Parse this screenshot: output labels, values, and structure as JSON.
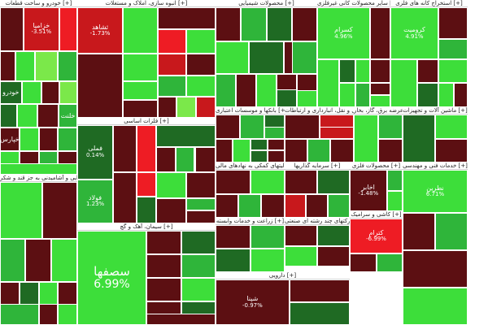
{
  "chart_data": {
    "type": "treemap",
    "colors": {
      "dark_red": "#5c0f12",
      "red": "#c8181c",
      "bright_red": "#ee1c24",
      "dark_green": "#1f6a23",
      "green": "#2fb53a",
      "bright_green": "#3dde3a",
      "lime": "#7be84a"
    },
    "sectors": [
      {
        "name": "خودرو و ساخت قطعات [+]",
        "cells": [
          {
            "c": "dark_red"
          },
          {
            "label": "خزامیا",
            "value": "-3.51%",
            "c": "red"
          },
          {
            "c": "bright_red"
          },
          {
            "c": "dark_red"
          },
          {
            "c": "bright_green"
          },
          {
            "c": "lime"
          },
          {
            "c": "green"
          },
          {
            "label": "خودرو",
            "c": "dark_green"
          },
          {
            "c": "bright_green"
          },
          {
            "c": "dark_red"
          },
          {
            "c": "lime"
          },
          {
            "c": "dark_green"
          },
          {
            "c": "bright_green"
          },
          {
            "c": "dark_red"
          },
          {
            "label": "خلنت",
            "c": "green"
          },
          {
            "label": "خپارس",
            "c": "dark_red"
          },
          {
            "c": "bright_green"
          },
          {
            "c": "dark_red"
          },
          {
            "c": "green"
          },
          {
            "c": "bright_green"
          },
          {
            "c": "dark_red"
          },
          {
            "c": "green"
          },
          {
            "c": "dark_red"
          },
          {
            "c": "bright_green"
          }
        ]
      },
      {
        "name": "انبوه سازی، املاک و مستغلات [+]",
        "cells": [
          {
            "label": "ثشاهد",
            "value": "-1.73%",
            "c": "red"
          },
          {
            "c": "bright_green"
          },
          {
            "c": "dark_red"
          },
          {
            "c": "bright_red"
          },
          {
            "c": "bright_green"
          },
          {
            "c": "dark_red"
          },
          {
            "c": "bright_green"
          },
          {
            "c": "red"
          },
          {
            "c": "dark_red"
          },
          {
            "c": "bright_green"
          },
          {
            "c": "dark_red"
          },
          {
            "c": "green"
          },
          {
            "c": "bright_green"
          },
          {
            "c": "dark_red"
          },
          {
            "c": "lime"
          },
          {
            "c": "red"
          }
        ]
      },
      {
        "name": "محصولات شیمیایی [+]",
        "cells": [
          {
            "c": "dark_red"
          },
          {
            "c": "green"
          },
          {
            "c": "dark_green"
          },
          {
            "c": "dark_red"
          },
          {
            "c": "bright_green"
          },
          {
            "c": "dark_green"
          },
          {
            "c": "dark_red"
          },
          {
            "c": "green"
          },
          {
            "c": "dark_red"
          },
          {
            "c": "bright_green"
          },
          {
            "c": "dark_green"
          },
          {
            "c": "dark_red"
          },
          {
            "c": "green"
          },
          {
            "c": "dark_red"
          },
          {
            "c": "bright_green"
          }
        ]
      },
      {
        "name": "سایر محصولات کانی غیرفلزی [+]",
        "cells": [
          {
            "label": "کسرام",
            "value": "4.96%",
            "c": "bright_green"
          },
          {
            "c": "dark_red"
          },
          {
            "c": "bright_green"
          },
          {
            "c": "dark_green"
          },
          {
            "c": "bright_green"
          },
          {
            "c": "dark_red"
          },
          {
            "c": "bright_green"
          },
          {
            "c": "green"
          },
          {
            "c": "dark_red"
          },
          {
            "c": "bright_green"
          }
        ]
      },
      {
        "name": "استخراج کانه های فلزی [+]",
        "cells": [
          {
            "label": "کروميت",
            "value": "4.91%",
            "c": "bright_green"
          },
          {
            "c": "dark_red"
          },
          {
            "c": "green"
          },
          {
            "c": "bright_green"
          },
          {
            "c": "dark_red"
          },
          {
            "c": "bright_green"
          },
          {
            "c": "dark_green"
          },
          {
            "c": "bright_green"
          },
          {
            "c": "dark_red"
          }
        ]
      },
      {
        "name": "فلزات اساسی [+]",
        "cells": [
          {
            "label": "فملی",
            "value": "0.14%",
            "c": "dark_green"
          },
          {
            "c": "dark_red"
          },
          {
            "c": "bright_red"
          },
          {
            "label": "فولاد",
            "value": "1.23%",
            "c": "green"
          },
          {
            "c": "dark_red"
          },
          {
            "c": "dark_green"
          },
          {
            "c": "bright_red"
          },
          {
            "c": "dark_red"
          },
          {
            "c": "green"
          },
          {
            "c": "dark_red"
          },
          {
            "c": "bright_green"
          },
          {
            "c": "dark_red"
          },
          {
            "c": "dark_green"
          },
          {
            "c": "dark_red"
          },
          {
            "c": "green"
          },
          {
            "c": "dark_red"
          }
        ]
      },
      {
        "name": "سیمان، آهک و گچ [+]",
        "cells": [
          {
            "label": "سصفها",
            "value": "6.99%",
            "c": "bright_green"
          },
          {
            "c": "dark_red"
          },
          {
            "c": "dark_green"
          },
          {
            "c": "dark_red"
          },
          {
            "c": "green"
          },
          {
            "c": "dark_red"
          },
          {
            "c": "bright_green"
          },
          {
            "c": "dark_red"
          },
          {
            "c": "dark_green"
          },
          {
            "c": "dark_red"
          }
        ]
      },
      {
        "name": "محصولات غذایی و آشامیدنی به جز قند و شکر [+]",
        "cells": [
          {
            "c": "bright_green"
          },
          {
            "c": "dark_red"
          },
          {
            "c": "green"
          },
          {
            "c": "dark_red"
          },
          {
            "c": "bright_green"
          },
          {
            "c": "dark_red"
          },
          {
            "c": "dark_green"
          },
          {
            "c": "bright_green"
          },
          {
            "c": "dark_red"
          },
          {
            "c": "green"
          },
          {
            "c": "dark_red"
          },
          {
            "c": "bright_green"
          }
        ]
      },
      {
        "name": "بانکها و موسسات اعتباری [+]",
        "cells": [
          {
            "c": "dark_red"
          },
          {
            "c": "green"
          },
          {
            "c": "dark_green"
          },
          {
            "c": "dark_red"
          },
          {
            "c": "bright_green"
          },
          {
            "c": "dark_green"
          },
          {
            "c": "dark_red"
          },
          {
            "c": "dark_green"
          },
          {
            "c": "dark_red"
          },
          {
            "c": "green"
          }
        ]
      },
      {
        "name": "حمل و نقل، انبارداری و ارتباطات [+]",
        "cells": [
          {
            "c": "dark_red"
          },
          {
            "c": "red"
          },
          {
            "c": "dark_red"
          },
          {
            "c": "green"
          },
          {
            "c": "dark_red"
          },
          {
            "c": "red"
          }
        ]
      },
      {
        "name": "شرکتهای چند رشته ای صنعتی [+]",
        "cells": [
          {
            "c": "dark_red"
          },
          {
            "c": "dark_green"
          },
          {
            "c": "bright_green"
          },
          {
            "c": "dark_red"
          }
        ]
      },
      {
        "name": "فعالیتهای کمکی به نهادهای مالی [+]",
        "cells": [
          {
            "c": "dark_red"
          },
          {
            "c": "bright_green"
          },
          {
            "c": "dark_red"
          },
          {
            "c": "green"
          },
          {
            "c": "dark_red"
          }
        ]
      },
      {
        "name": "عرضه برق، گاز، بخار [+]",
        "cells": [
          {
            "c": "bright_green"
          },
          {
            "c": "green"
          },
          {
            "c": "dark_red"
          }
        ]
      },
      {
        "name": "ماشین آلات و تجهیزات [+]",
        "cells": [
          {
            "c": "dark_green"
          },
          {
            "c": "bright_green"
          },
          {
            "c": "dark_red"
          }
        ]
      },
      {
        "name": "محصولات فلزی [+]",
        "cells": [
          {
            "label": "اخابر",
            "value": "-1.48%",
            "c": "dark_red"
          },
          {
            "c": "green"
          },
          {
            "c": "bright_green"
          }
        ]
      },
      {
        "name": "زراعت و خدمات وابسته [+]",
        "cells": [
          {
            "c": "dark_red"
          },
          {
            "c": "green"
          },
          {
            "c": "dark_green"
          },
          {
            "c": "bright_green"
          }
        ]
      },
      {
        "name": "سرمایه گذاریها [+]",
        "cells": [
          {
            "c": "dark_red"
          },
          {
            "c": "dark_green"
          },
          {
            "c": "red"
          },
          {
            "c": "dark_red"
          },
          {
            "c": "green"
          }
        ]
      },
      {
        "name": "کاشی و سرامیک [+]",
        "cells": [
          {
            "label": "کترام",
            "value": "-6.99%",
            "c": "bright_red"
          },
          {
            "c": "dark_red"
          },
          {
            "c": "green"
          }
        ]
      },
      {
        "name": "دارویی [+]",
        "cells": [
          {
            "label": "شپنا",
            "value": "-0.97%",
            "c": "dark_red"
          },
          {
            "c": "dark_red"
          },
          {
            "c": "dark_green"
          }
        ]
      },
      {
        "name": "خدمات فنی و مهندسی [+]",
        "cells": [
          {
            "label": "نطرین",
            "value": "6.71%",
            "c": "bright_green"
          },
          {
            "c": "dark_red"
          },
          {
            "c": "green"
          },
          {
            "c": "dark_red"
          },
          {
            "c": "bright_green"
          }
        ]
      }
    ]
  }
}
